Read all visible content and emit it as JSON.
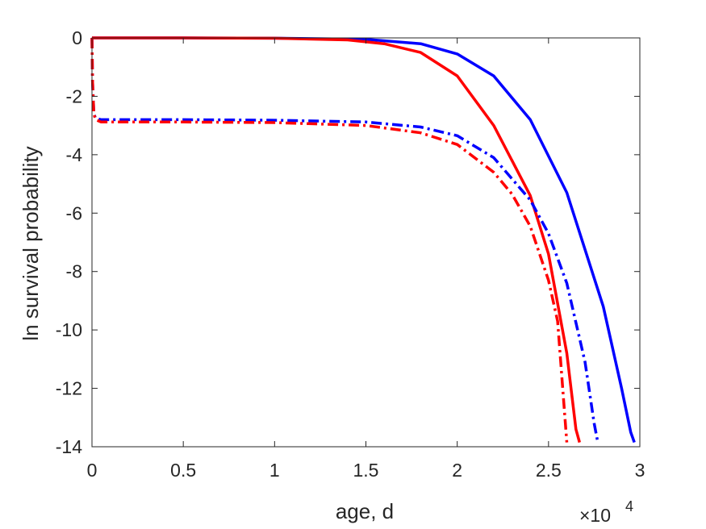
{
  "chart_data": {
    "type": "line",
    "title": "",
    "xlabel": "age, d",
    "ylabel": "ln survival probability",
    "x_exponent_label": {
      "base": "×10",
      "power": "4"
    },
    "xlim": [
      0,
      3
    ],
    "ylim": [
      -14,
      0
    ],
    "x_ticks": [
      "0",
      "0.5",
      "1",
      "1.5",
      "2",
      "2.5",
      "3"
    ],
    "y_ticks": [
      "0",
      "-2",
      "-4",
      "-6",
      "-8",
      "-10",
      "-12",
      "-14"
    ],
    "grid": false,
    "legend": "none",
    "series": [
      {
        "color": "#0000ff",
        "style": "solid",
        "x": [
          0,
          0.5,
          1.0,
          1.5,
          1.8,
          2.0,
          2.2,
          2.4,
          2.6,
          2.8,
          2.9,
          2.95,
          2.97
        ],
        "y": [
          0,
          0,
          -0.01,
          -0.05,
          -0.2,
          -0.55,
          -1.3,
          -2.8,
          -5.3,
          -9.2,
          -12.0,
          -13.5,
          -13.85
        ]
      },
      {
        "color": "#ff0000",
        "style": "solid",
        "x": [
          0,
          0.5,
          1.0,
          1.4,
          1.6,
          1.8,
          2.0,
          2.2,
          2.4,
          2.5,
          2.6,
          2.65,
          2.67
        ],
        "y": [
          0,
          0,
          -0.01,
          -0.07,
          -0.2,
          -0.5,
          -1.3,
          -3.0,
          -5.4,
          -7.4,
          -10.8,
          -13.4,
          -13.85
        ]
      },
      {
        "color": "#0000ff",
        "style": "dashdot",
        "x": [
          0,
          0.003,
          0.01,
          0.02,
          0.05,
          0.5,
          1.0,
          1.5,
          1.8,
          2.0,
          2.2,
          2.4,
          2.5,
          2.6,
          2.7,
          2.75,
          2.77
        ],
        "y": [
          0,
          -1.5,
          -2.6,
          -2.75,
          -2.8,
          -2.8,
          -2.82,
          -2.88,
          -3.05,
          -3.35,
          -4.1,
          -5.55,
          -6.7,
          -8.4,
          -11.1,
          -13.2,
          -13.85
        ]
      },
      {
        "color": "#ff0000",
        "style": "dashdot",
        "x": [
          0,
          0.003,
          0.01,
          0.02,
          0.05,
          0.5,
          1.0,
          1.5,
          1.8,
          2.0,
          2.2,
          2.3,
          2.4,
          2.5,
          2.55,
          2.6
        ],
        "y": [
          0,
          -1.5,
          -2.6,
          -2.8,
          -2.88,
          -2.88,
          -2.9,
          -3.0,
          -3.25,
          -3.65,
          -4.6,
          -5.35,
          -6.45,
          -8.3,
          -9.7,
          -13.85
        ]
      }
    ]
  }
}
